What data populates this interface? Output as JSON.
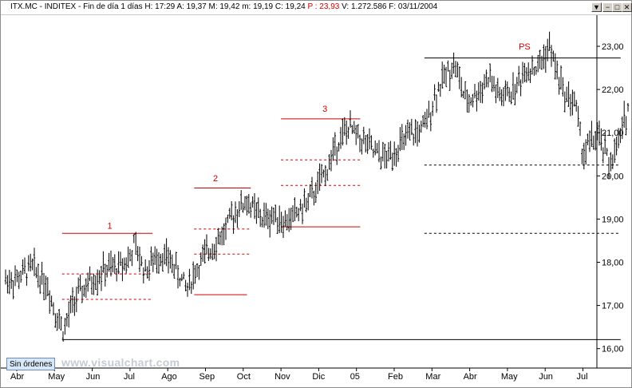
{
  "titlebar": {
    "symbol": "ITX.MC - INDITEX - Fin de día 1 días",
    "h": "H: 17:29",
    "a": "A: 19,37",
    "m": "M: 19,42",
    "mm": "m: 19,19",
    "c": "C: 19,24",
    "p": "P : 23,93",
    "v": "V: 1.272.586",
    "f": "F: 03/11/2004",
    "buttons": [
      "▼",
      "−",
      "□",
      "✕"
    ]
  },
  "status_button": "Sin órdenes",
  "watermark": "www.visualchart.com",
  "colors": {
    "annotation": "#d00000",
    "support": "#000000",
    "bars": "#000000"
  },
  "chart_data": {
    "type": "bar",
    "subtype": "ohlc",
    "x_labels": [
      "Abr",
      "May",
      "Jun",
      "Jul",
      "Ago",
      "Sep",
      "Oct",
      "Nov",
      "Dic",
      "05",
      "Feb",
      "Mar",
      "Abr",
      "May",
      "Jun",
      "Jul"
    ],
    "y_ticks": [
      "16,00",
      "17,00",
      "18,00",
      "19,00",
      "20,00",
      "21,00",
      "22,00",
      "23,00"
    ],
    "ylim": [
      15.6,
      23.4
    ],
    "price_path": [
      [
        0,
        17.6
      ],
      [
        0.4,
        17.9
      ],
      [
        0.8,
        17.5
      ],
      [
        1.0,
        16.9
      ],
      [
        1.25,
        16.4
      ],
      [
        1.5,
        17.1
      ],
      [
        1.9,
        17.5
      ],
      [
        2.3,
        17.8
      ],
      [
        2.7,
        17.9
      ],
      [
        3.0,
        18.1
      ],
      [
        3.1,
        18.4
      ],
      [
        3.4,
        17.8
      ],
      [
        3.8,
        18.2
      ],
      [
        4.1,
        18.0
      ],
      [
        4.3,
        17.7
      ],
      [
        4.5,
        17.4
      ],
      [
        4.8,
        17.9
      ],
      [
        5.2,
        18.4
      ],
      [
        5.5,
        18.7
      ],
      [
        5.8,
        19.2
      ],
      [
        6.1,
        19.4
      ],
      [
        6.5,
        19.0
      ],
      [
        6.9,
        19.1
      ],
      [
        7.1,
        18.9
      ],
      [
        7.5,
        19.2
      ],
      [
        7.8,
        19.5
      ],
      [
        8.2,
        20.1
      ],
      [
        8.5,
        20.8
      ],
      [
        8.8,
        21.1
      ],
      [
        9.2,
        20.8
      ],
      [
        9.5,
        20.5
      ],
      [
        9.8,
        20.4
      ],
      [
        10.0,
        20.6
      ],
      [
        10.4,
        20.9
      ],
      [
        10.8,
        21.1
      ],
      [
        11.1,
        21.9
      ],
      [
        11.4,
        22.4
      ],
      [
        11.6,
        22.6
      ],
      [
        11.9,
        21.7
      ],
      [
        12.2,
        21.9
      ],
      [
        12.5,
        22.3
      ],
      [
        12.8,
        21.8
      ],
      [
        13.2,
        22.0
      ],
      [
        13.5,
        22.5
      ],
      [
        13.8,
        22.5
      ],
      [
        14.1,
        23.0
      ],
      [
        14.5,
        21.9
      ],
      [
        14.8,
        21.7
      ],
      [
        15.0,
        20.5
      ],
      [
        15.2,
        20.8
      ],
      [
        15.4,
        20.9
      ],
      [
        15.7,
        20.3
      ],
      [
        15.9,
        20.6
      ],
      [
        16.2,
        21.6
      ]
    ],
    "last_x": 16.2,
    "annotations": [
      {
        "text": "1",
        "x": 2.4,
        "y": 18.78
      },
      {
        "text": "2",
        "x": 5.2,
        "y": 19.88
      },
      {
        "text": "3",
        "x": 8.1,
        "y": 21.48
      },
      {
        "text": "PS",
        "x": 13.3,
        "y": 22.93
      }
    ],
    "solid_red": [
      {
        "x1": 1.2,
        "x2": 3.6,
        "y": 18.67
      },
      {
        "x1": 4.7,
        "x2": 6.1,
        "y": 17.25
      },
      {
        "x1": 4.7,
        "x2": 6.2,
        "y": 19.72
      },
      {
        "x1": 7.0,
        "x2": 9.1,
        "y": 21.32
      },
      {
        "x1": 7.0,
        "x2": 9.1,
        "y": 18.82
      }
    ],
    "dashed_red": [
      {
        "x1": 1.2,
        "x2": 3.6,
        "y": 17.73
      },
      {
        "x1": 1.2,
        "x2": 3.6,
        "y": 17.14
      },
      {
        "x1": 4.7,
        "x2": 6.2,
        "y": 18.77
      },
      {
        "x1": 4.7,
        "x2": 6.2,
        "y": 18.19
      },
      {
        "x1": 7.0,
        "x2": 9.1,
        "y": 20.37
      },
      {
        "x1": 7.0,
        "x2": 9.1,
        "y": 19.78
      }
    ],
    "solid_black": [
      {
        "x1": 1.2,
        "x2": 16.0,
        "y": 16.21
      },
      {
        "x1": 10.8,
        "x2": 16.0,
        "y": 22.73
      }
    ],
    "dashed_black": [
      {
        "x1": 10.8,
        "x2": 16.0,
        "y": 20.25
      },
      {
        "x1": 10.8,
        "x2": 16.0,
        "y": 18.67
      }
    ]
  }
}
